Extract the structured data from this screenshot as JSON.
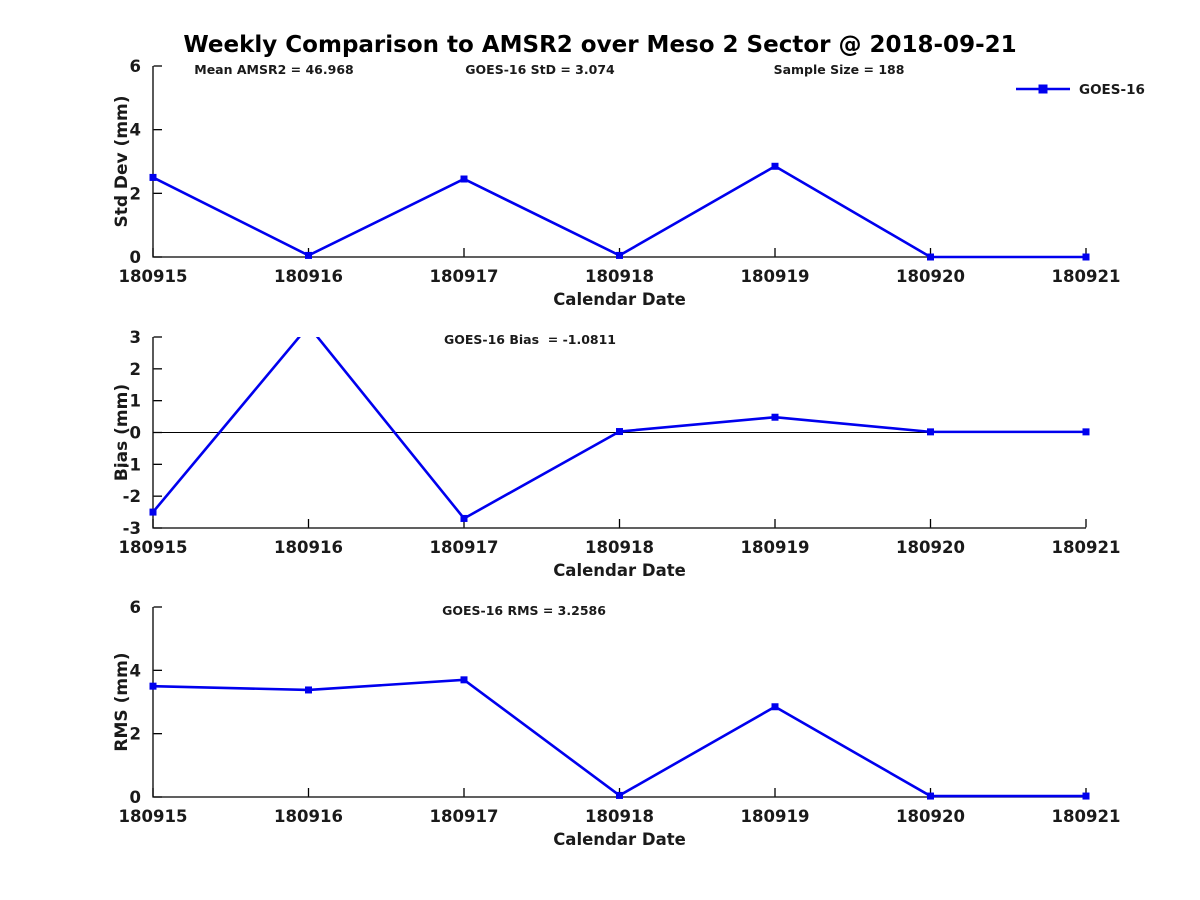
{
  "title": "Weekly Comparison to AMSR2 over Meso 2 Sector @ 2018-09-21",
  "colors": {
    "line": "#0000ee",
    "axis": "#000000",
    "text": "#1a1a1a"
  },
  "legend": {
    "label": "GOES-16",
    "position": "top-right-of-first-subplot"
  },
  "chart_data": [
    {
      "type": "line",
      "id": "std-dev",
      "series": [
        {
          "name": "GOES-16",
          "values": [
            2.5,
            0.05,
            2.45,
            0.05,
            2.85,
            0.0,
            0.0
          ]
        }
      ],
      "categories": [
        "180915",
        "180916",
        "180917",
        "180918",
        "180919",
        "180920",
        "180921"
      ],
      "xlabel": "Calendar Date",
      "ylabel": "Std Dev (mm)",
      "ylim": [
        0,
        6
      ],
      "yticks": [
        0,
        2,
        4,
        6
      ],
      "grid": false,
      "annotations": [
        "Mean AMSR2 = 46.968",
        "GOES-16 StD = 3.074",
        "Sample Size = 188"
      ]
    },
    {
      "type": "line",
      "id": "bias",
      "series": [
        {
          "name": "GOES-16",
          "values": [
            -2.5,
            3.35,
            -2.7,
            0.03,
            0.48,
            0.02,
            0.02
          ]
        }
      ],
      "clipping_note": "value at 180916 exceeds ymax and the line is clipped at +3 with no marker shown",
      "categories": [
        "180915",
        "180916",
        "180917",
        "180918",
        "180919",
        "180920",
        "180921"
      ],
      "xlabel": "Calendar Date",
      "ylabel": "Bias (mm)",
      "ylim": [
        -3,
        3
      ],
      "yticks": [
        -3,
        -2,
        -1,
        0,
        1,
        2,
        3
      ],
      "zero_line": true,
      "grid": false,
      "annotations": [
        "GOES-16 Bias  = -1.0811"
      ]
    },
    {
      "type": "line",
      "id": "rms",
      "series": [
        {
          "name": "GOES-16",
          "values": [
            3.5,
            3.38,
            3.7,
            0.05,
            2.85,
            0.03,
            0.03
          ]
        }
      ],
      "categories": [
        "180915",
        "180916",
        "180917",
        "180918",
        "180919",
        "180920",
        "180921"
      ],
      "xlabel": "Calendar Date",
      "ylabel": "RMS (mm)",
      "ylim": [
        0,
        6
      ],
      "yticks": [
        0,
        2,
        4,
        6
      ],
      "grid": false,
      "annotations": [
        "GOES-16 RMS = 3.2586"
      ]
    }
  ]
}
